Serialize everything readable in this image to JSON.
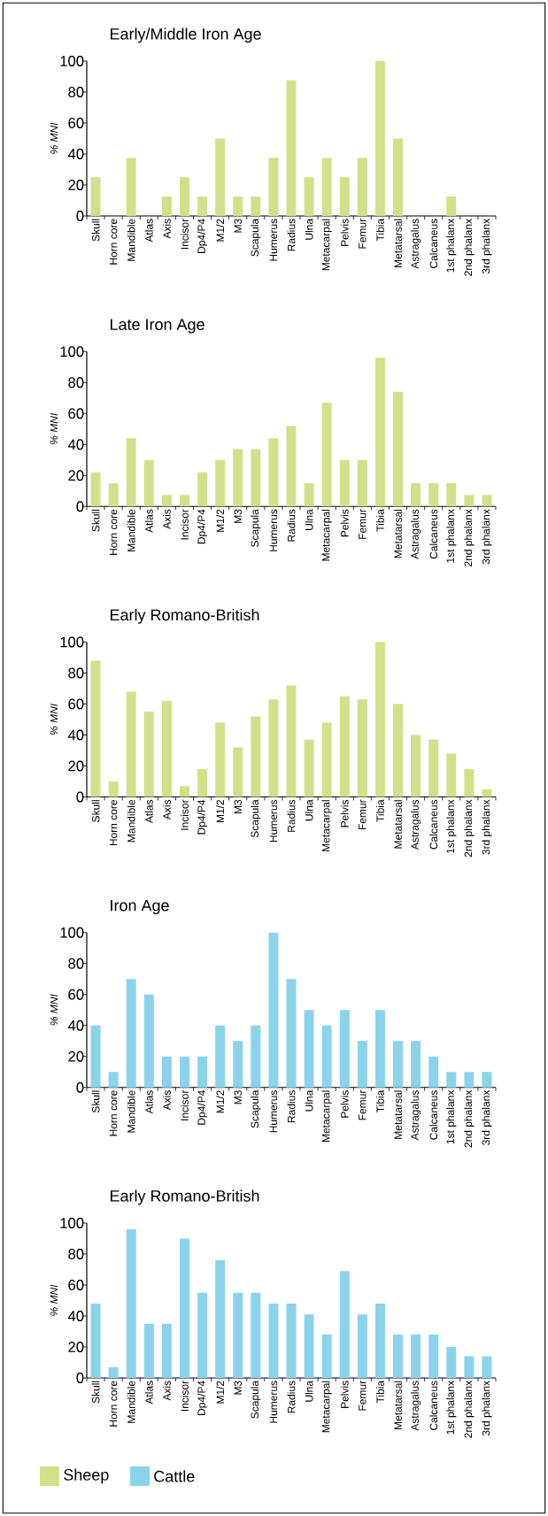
{
  "chart_data": [
    {
      "type": "bar",
      "title": "Early/Middle Iron Age",
      "ylabel": "% MNI",
      "ylim": [
        0,
        100
      ],
      "yticks": [
        0,
        20,
        40,
        60,
        80,
        100
      ],
      "legend": "bottom",
      "categories": [
        "Skull",
        "Horn core",
        "Mandible",
        "Atlas",
        "Axis",
        "Incisor",
        "Dp4/P4",
        "M1/2",
        "M3",
        "Scapula",
        "Humerus",
        "Radius",
        "Ulna",
        "Metacarpal",
        "Pelvis",
        "Femur",
        "Tibia",
        "Metatarsal",
        "Astragalus",
        "Calcaneus",
        "1st phalanx",
        "2nd phalanx",
        "3rd phalanx"
      ],
      "series": [
        {
          "name": "Sheep",
          "color": "#d0e18a",
          "values": [
            25,
            0,
            37.5,
            0,
            12.5,
            25,
            12.5,
            50,
            12.5,
            12.5,
            37.5,
            87.5,
            25,
            37.5,
            25,
            37.5,
            100,
            50,
            0,
            0,
            12.5,
            0,
            0
          ]
        }
      ]
    },
    {
      "type": "bar",
      "title": "Late Iron Age",
      "ylabel": "% MNI",
      "ylim": [
        0,
        100
      ],
      "yticks": [
        0,
        20,
        40,
        60,
        80,
        100
      ],
      "categories": [
        "Skull",
        "Horn core",
        "Mandible",
        "Atlas",
        "Axis",
        "Incisor",
        "Dp4/P4",
        "M1/2",
        "M3",
        "Scapula",
        "Humerus",
        "Radius",
        "Ulna",
        "Metacarpal",
        "Pelvis",
        "Femur",
        "Tibia",
        "Metatarsal",
        "Astragalus",
        "Calcaneus",
        "1st phalanx",
        "2nd phalanx",
        "3rd phalanx"
      ],
      "series": [
        {
          "color": "#d0e18a",
          "values": [
            22,
            15,
            44,
            30,
            7.4,
            7.4,
            22,
            30,
            37,
            37,
            44,
            52,
            15,
            67,
            30,
            30,
            96,
            74,
            15,
            15,
            15,
            7.4,
            7.4
          ]
        }
      ]
    },
    {
      "type": "bar",
      "title": "Early Romano-British",
      "ylabel": "% MNI",
      "ylim": [
        0,
        100
      ],
      "yticks": [
        0,
        20,
        40,
        60,
        80,
        100
      ],
      "categories": [
        "Skull",
        "Horn core",
        "Mandible",
        "Atlas",
        "Axis",
        "Incisor",
        "Dp4/P4",
        "M1/2",
        "M3",
        "Scapula",
        "Humerus",
        "Radius",
        "Ulna",
        "Metacarpal",
        "Pelvis",
        "Femur",
        "Tibia",
        "Metatarsal",
        "Astragalus",
        "Calcaneus",
        "1st phalanx",
        "2nd phalanx",
        "3rd phalanx"
      ],
      "series": [
        {
          "color": "#d0e18a",
          "values": [
            88,
            10,
            68,
            55,
            62,
            7,
            18,
            48,
            32,
            52,
            63,
            72,
            37,
            48,
            65,
            63,
            100,
            60,
            40,
            37,
            28,
            18,
            5
          ]
        }
      ]
    },
    {
      "type": "bar",
      "title": "Iron Age",
      "ylabel": "% MNI",
      "ylim": [
        0,
        100
      ],
      "yticks": [
        0,
        20,
        40,
        60,
        80,
        100
      ],
      "legend": "bottom",
      "categories": [
        "Skull",
        "Horn core",
        "Mandible",
        "Atlas",
        "Axis",
        "Incisor",
        "Dp4/P4",
        "M1/2",
        "M3",
        "Scapula",
        "Humerus",
        "Radius",
        "Ulna",
        "Metacarpal",
        "Pelvis",
        "Femur",
        "Tibia",
        "Metatarsal",
        "Astragalus",
        "Calcaneus",
        "1st phalanx",
        "2nd phalanx",
        "3rd phalanx"
      ],
      "series": [
        {
          "name": "Cattle",
          "color": "#8bd3ea",
          "values": [
            40,
            10,
            70,
            60,
            20,
            20,
            20,
            40,
            30,
            40,
            100,
            70,
            50,
            40,
            50,
            30,
            50,
            30,
            30,
            20,
            10,
            10,
            10
          ]
        }
      ]
    },
    {
      "type": "bar",
      "title": "Early Romano-British",
      "ylabel": "% MNI",
      "ylim": [
        0,
        100
      ],
      "yticks": [
        0,
        20,
        40,
        60,
        80,
        100
      ],
      "categories": [
        "Skull",
        "Horn core",
        "Mandible",
        "Atlas",
        "Axis",
        "Incisor",
        "Dp4/P4",
        "M1/2",
        "M3",
        "Scapula",
        "Humerus",
        "Radius",
        "Ulna",
        "Metacarpal",
        "Pelvis",
        "Femur",
        "Tibia",
        "Metatarsal",
        "Astragalus",
        "Calcaneus",
        "1st phalanx",
        "2nd phalanx",
        "3rd phalanx"
      ],
      "series": [
        {
          "color": "#8bd3ea",
          "values": [
            48,
            7,
            96,
            35,
            35,
            90,
            55,
            76,
            55,
            55,
            48,
            48,
            41,
            28,
            69,
            41,
            48,
            28,
            28,
            28,
            20,
            14,
            14
          ]
        }
      ]
    }
  ]
}
